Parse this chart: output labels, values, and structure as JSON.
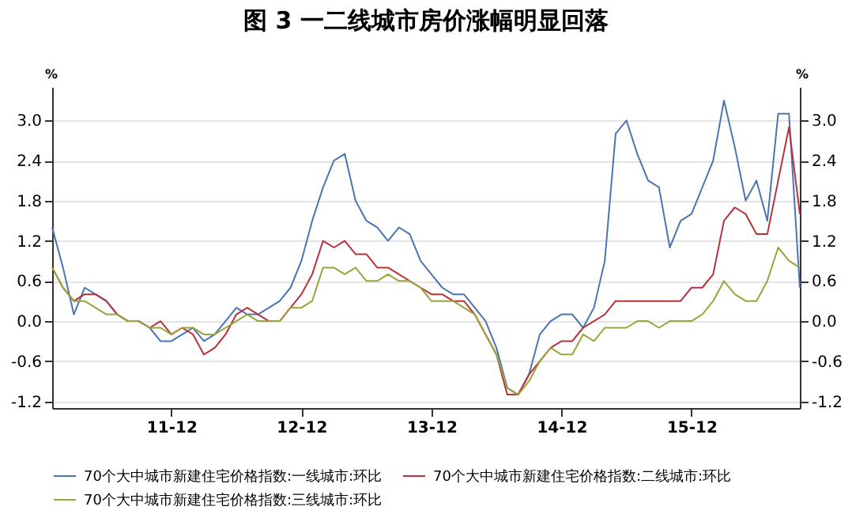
{
  "chart_data": {
    "type": "line",
    "title": "图 3 一二线城市房价涨幅明显回落",
    "ylabel": "%",
    "y2label": "%",
    "categories": [
      null,
      null,
      null,
      null,
      null,
      null,
      null,
      null,
      null,
      null,
      null,
      "11-12",
      null,
      null,
      null,
      null,
      null,
      null,
      null,
      null,
      null,
      null,
      null,
      "12-12",
      null,
      null,
      null,
      null,
      null,
      null,
      null,
      null,
      null,
      null,
      null,
      "13-12",
      null,
      null,
      null,
      null,
      null,
      null,
      null,
      null,
      null,
      null,
      null,
      "14-12",
      null,
      null,
      null,
      null,
      null,
      null,
      null,
      null,
      null,
      null,
      null,
      "15-12",
      null,
      null,
      null,
      null,
      null,
      null,
      null,
      null,
      null,
      null
    ],
    "series": [
      {
        "name": "70个大中城市新建住宅价格指数:一线城市:环比",
        "color": "#4a74b4",
        "values": [
          1.4,
          0.8,
          0.1,
          0.5,
          0.4,
          0.3,
          0.1,
          0.0,
          0.0,
          -0.1,
          -0.3,
          -0.3,
          -0.2,
          -0.1,
          -0.3,
          -0.2,
          0.0,
          0.2,
          0.1,
          0.1,
          0.2,
          0.3,
          0.5,
          0.9,
          1.5,
          2.0,
          2.4,
          2.5,
          1.8,
          1.5,
          1.4,
          1.2,
          1.4,
          1.3,
          0.9,
          0.7,
          0.5,
          0.4,
          0.4,
          0.2,
          0.0,
          -0.4,
          -1.0,
          -1.1,
          -0.8,
          -0.2,
          0.0,
          0.1,
          0.1,
          -0.1,
          0.2,
          0.9,
          2.8,
          3.0,
          2.5,
          2.1,
          2.0,
          1.1,
          1.5,
          1.6,
          2.0,
          2.4,
          3.3,
          2.6,
          1.8,
          2.1,
          1.5,
          3.1,
          3.1,
          0.5
        ]
      },
      {
        "name": "70个大中城市新建住宅价格指数:二线城市:环比",
        "color": "#b8323a",
        "values": [
          0.8,
          0.5,
          0.3,
          0.4,
          0.4,
          0.3,
          0.1,
          0.0,
          0.0,
          -0.1,
          0.0,
          -0.2,
          -0.1,
          -0.2,
          -0.5,
          -0.4,
          -0.2,
          0.1,
          0.2,
          0.1,
          0.0,
          0.0,
          0.2,
          0.4,
          0.7,
          1.2,
          1.1,
          1.2,
          1.0,
          1.0,
          0.8,
          0.8,
          0.7,
          0.6,
          0.5,
          0.4,
          0.4,
          0.3,
          0.3,
          0.1,
          -0.2,
          -0.5,
          -1.1,
          -1.1,
          -0.8,
          -0.6,
          -0.4,
          -0.3,
          -0.3,
          -0.1,
          0.0,
          0.1,
          0.3,
          0.3,
          0.3,
          0.3,
          0.3,
          0.3,
          0.3,
          0.5,
          0.5,
          0.7,
          1.5,
          1.7,
          1.6,
          1.3,
          1.3,
          2.1,
          2.9,
          1.6
        ]
      },
      {
        "name": "70个大中城市新建住宅价格指数:三线城市:环比",
        "color": "#9aa43a",
        "values": [
          0.8,
          0.5,
          0.3,
          0.3,
          0.2,
          0.1,
          0.1,
          0.0,
          0.0,
          -0.1,
          -0.1,
          -0.2,
          -0.1,
          -0.1,
          -0.2,
          -0.2,
          -0.1,
          0.0,
          0.1,
          0.0,
          0.0,
          0.0,
          0.2,
          0.2,
          0.3,
          0.8,
          0.8,
          0.7,
          0.8,
          0.6,
          0.6,
          0.7,
          0.6,
          0.6,
          0.5,
          0.3,
          0.3,
          0.3,
          0.2,
          0.1,
          -0.2,
          -0.5,
          -1.0,
          -1.1,
          -0.9,
          -0.6,
          -0.4,
          -0.5,
          -0.5,
          -0.2,
          -0.3,
          -0.1,
          -0.1,
          -0.1,
          0.0,
          0.0,
          -0.1,
          0.0,
          0.0,
          0.0,
          0.1,
          0.3,
          0.6,
          0.4,
          0.3,
          0.3,
          0.6,
          1.1,
          0.9,
          0.8
        ]
      }
    ],
    "ylim": [
      -1.3,
      3.5
    ],
    "yticks": [
      {
        "value": -1.2,
        "label": "-1.2"
      },
      {
        "value": -0.6,
        "label": "-0.6"
      },
      {
        "value": 0,
        "label": "0.0"
      },
      {
        "value": 0.6,
        "label": "0.6"
      },
      {
        "value": 1.2,
        "label": "1.2"
      },
      {
        "value": 1.8,
        "label": "1.8"
      },
      {
        "value": 2.4,
        "label": "2.4"
      },
      {
        "value": 3,
        "label": "3.0"
      }
    ],
    "y2lim": [
      -1.3,
      3.5
    ],
    "y2ticks": [
      {
        "value": -1.2,
        "label": "-1.2"
      },
      {
        "value": -0.6,
        "label": "-0.6"
      },
      {
        "value": 0,
        "label": "0.0"
      },
      {
        "value": 0.6,
        "label": "0.6"
      },
      {
        "value": 1.2,
        "label": "1.2"
      },
      {
        "value": 1.8,
        "label": "1.8"
      },
      {
        "value": 2.4,
        "label": "2.4"
      },
      {
        "value": 3,
        "label": "3.0"
      }
    ],
    "grid": "y",
    "legend": "bottom",
    "marker": "none",
    "line_style": "solid"
  }
}
